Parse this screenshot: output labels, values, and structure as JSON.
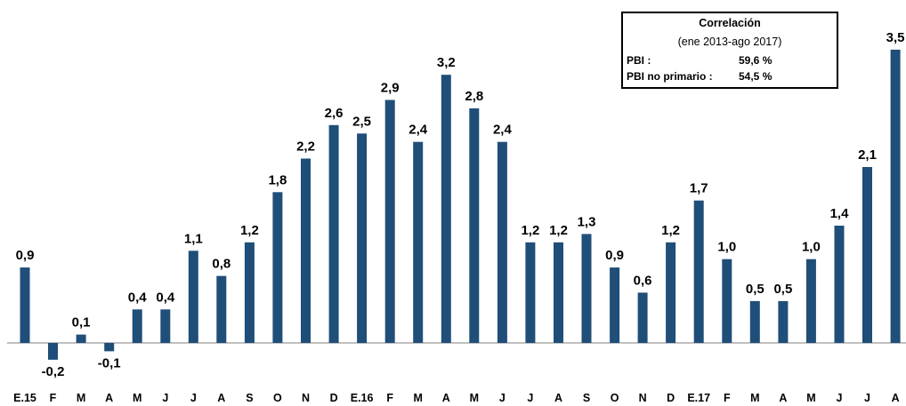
{
  "chart_data": {
    "type": "bar",
    "categories": [
      "E.15",
      "F",
      "M",
      "A",
      "M",
      "J",
      "J",
      "A",
      "S",
      "O",
      "N",
      "D",
      "E.16",
      "F",
      "M",
      "A",
      "M",
      "J",
      "J",
      "A",
      "S",
      "O",
      "N",
      "D",
      "E.17",
      "F",
      "M",
      "A",
      "M",
      "J",
      "J",
      "A"
    ],
    "values": [
      0.9,
      -0.2,
      0.1,
      -0.1,
      0.4,
      0.4,
      1.1,
      0.8,
      1.2,
      1.8,
      2.2,
      2.6,
      2.5,
      2.9,
      2.4,
      3.2,
      2.8,
      2.4,
      1.2,
      1.2,
      1.3,
      0.9,
      0.6,
      1.2,
      1.7,
      1.0,
      0.5,
      0.5,
      1.0,
      1.4,
      2.1,
      3.5
    ],
    "value_labels": [
      "0,9",
      "-0,2",
      "0,1",
      "-0,1",
      "0,4",
      "0,4",
      "1,1",
      "0,8",
      "1,2",
      "1,8",
      "2,2",
      "2,6",
      "2,5",
      "2,9",
      "2,4",
      "3,2",
      "2,8",
      "2,4",
      "1,2",
      "1,2",
      "1,3",
      "0,9",
      "0,6",
      "1,2",
      "1,7",
      "1,0",
      "0,5",
      "0,5",
      "1,0",
      "1,4",
      "2,1",
      "3,5"
    ],
    "title": "",
    "xlabel": "",
    "ylabel": "",
    "ylim": [
      -0.25,
      3.6
    ],
    "grid": false,
    "legend": "none",
    "bar_color": "#1F4E79",
    "axis_color": "#808080"
  },
  "correlation_box": {
    "title": "Correlación",
    "subtitle": "(ene 2013-ago 2017)",
    "rows": [
      {
        "label": "PBI :",
        "value": "59,6 %"
      },
      {
        "label": "PBI no primario :",
        "value": "54,5 %"
      }
    ]
  }
}
